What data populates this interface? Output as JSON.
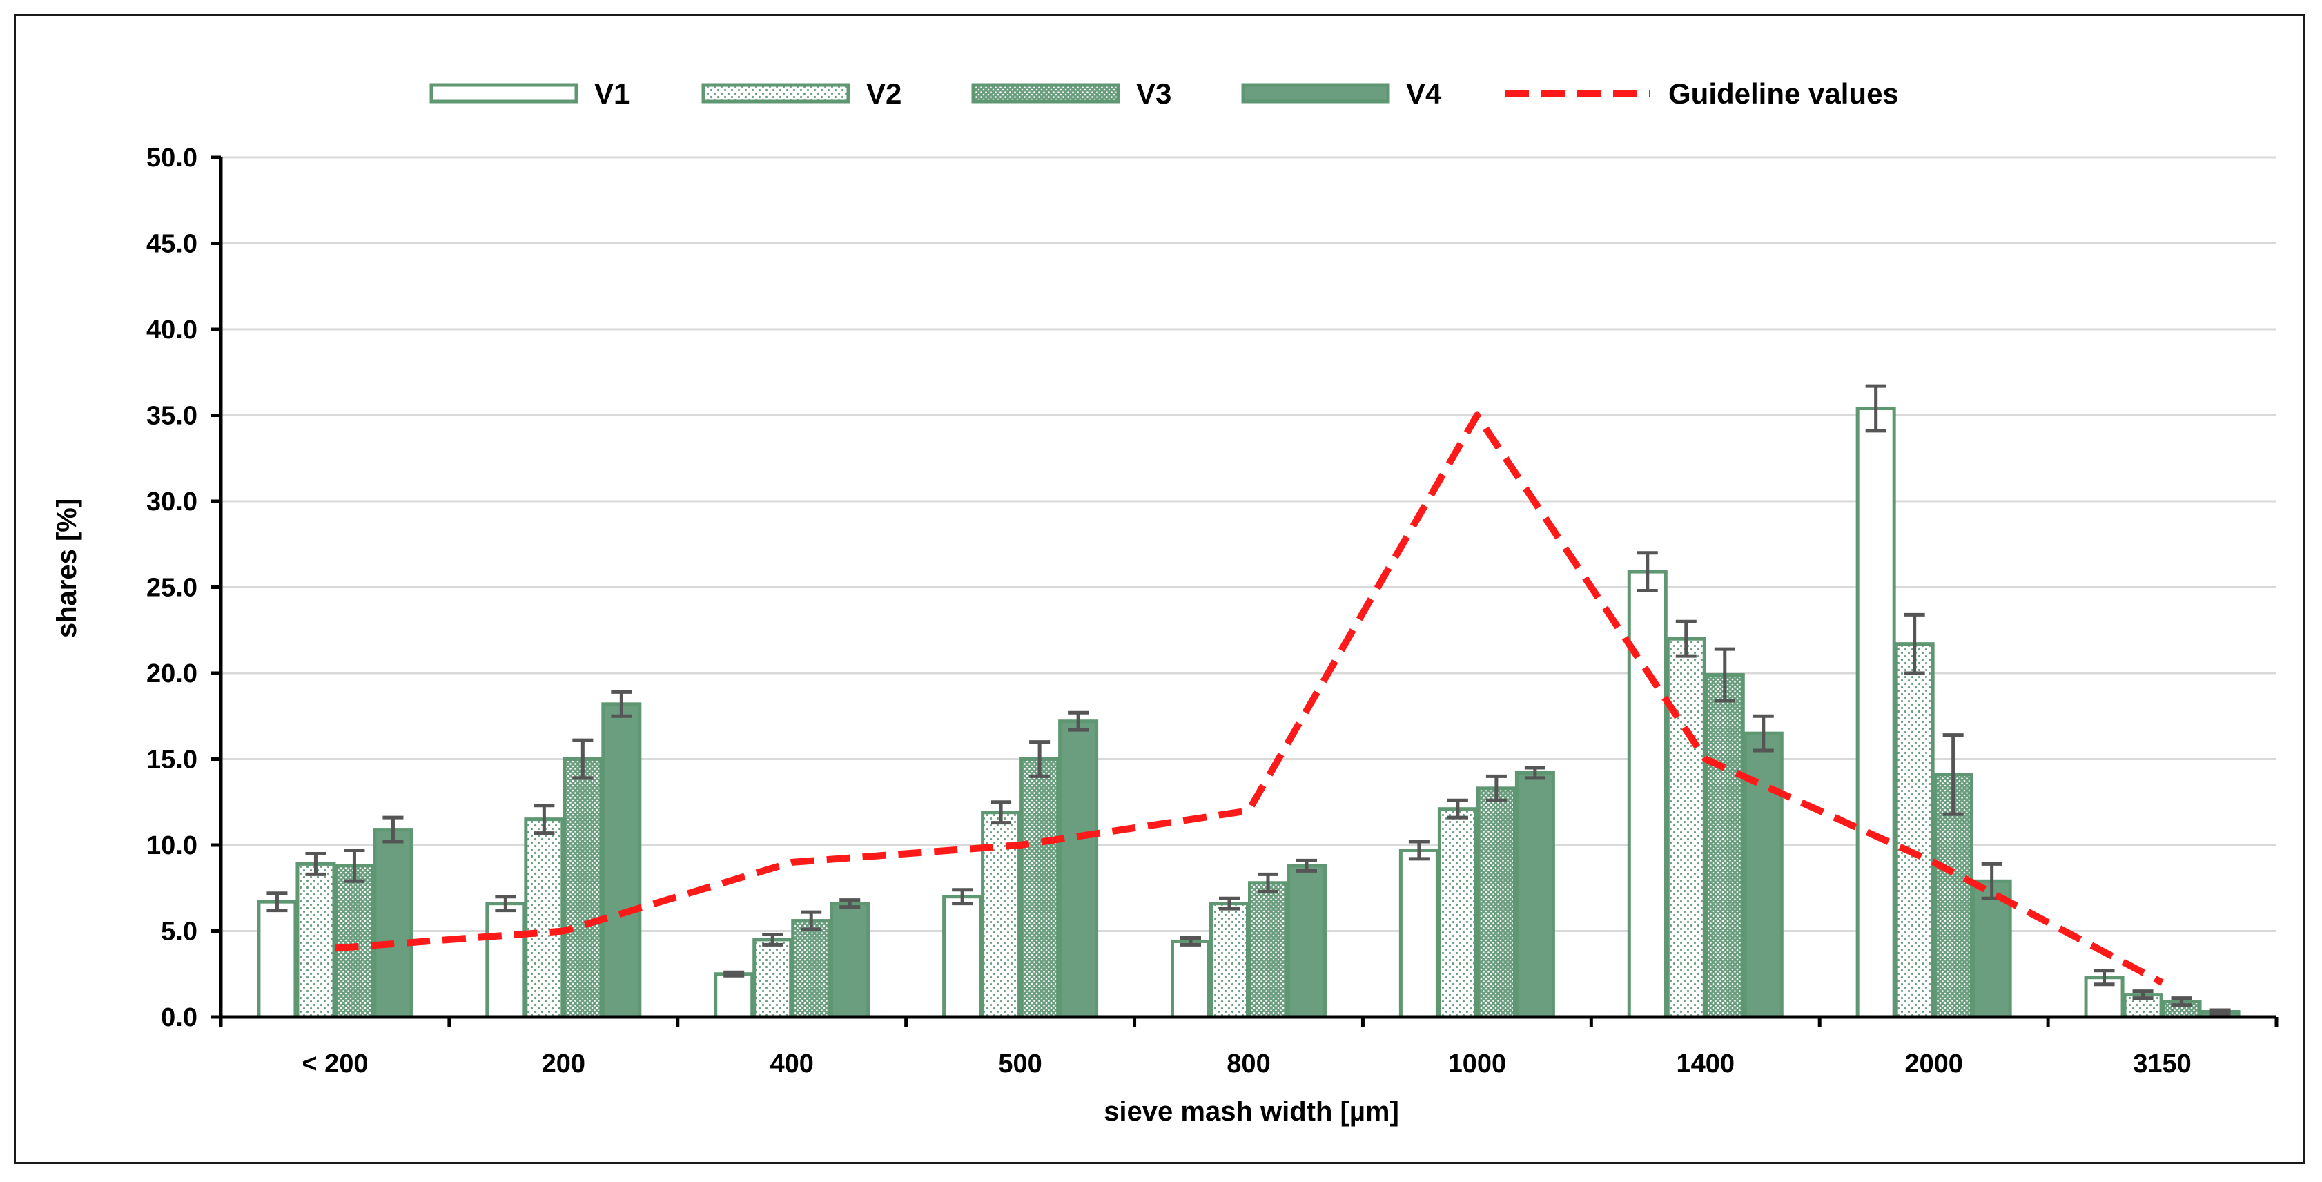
{
  "chart_data": {
    "type": "bar",
    "title": "",
    "xlabel": "sieve mash width [µm]",
    "ylabel": "shares [%]",
    "ylim": [
      0,
      50
    ],
    "ytick_step": 5,
    "ytick_labels": [
      "0.0",
      "5.0",
      "10.0",
      "15.0",
      "20.0",
      "25.0",
      "30.0",
      "35.0",
      "40.0",
      "45.0",
      "50.0"
    ],
    "grid": true,
    "legend_position": "top",
    "categories": [
      "< 200",
      "200",
      "400",
      "500",
      "800",
      "1000",
      "1400",
      "2000",
      "3150"
    ],
    "series": [
      {
        "name": "V1",
        "style": "outline",
        "values": [
          6.7,
          6.6,
          2.5,
          7.0,
          4.4,
          9.7,
          25.9,
          35.4,
          2.3
        ],
        "errors": [
          0.5,
          0.4,
          0.1,
          0.4,
          0.2,
          0.5,
          1.1,
          1.3,
          0.4
        ]
      },
      {
        "name": "V2",
        "style": "dots-light",
        "values": [
          8.9,
          11.5,
          4.5,
          11.9,
          6.6,
          12.1,
          22.0,
          21.7,
          1.3
        ],
        "errors": [
          0.6,
          0.8,
          0.3,
          0.6,
          0.3,
          0.5,
          1.0,
          1.7,
          0.2
        ]
      },
      {
        "name": "V3",
        "style": "dots-dense",
        "values": [
          8.8,
          15.0,
          5.6,
          15.0,
          7.8,
          13.3,
          19.9,
          14.1,
          0.9
        ],
        "errors": [
          0.9,
          1.1,
          0.5,
          1.0,
          0.5,
          0.7,
          1.5,
          2.3,
          0.2
        ]
      },
      {
        "name": "V4",
        "style": "solid",
        "values": [
          10.9,
          18.2,
          6.6,
          17.2,
          8.8,
          14.2,
          16.5,
          7.9,
          0.3
        ],
        "errors": [
          0.7,
          0.7,
          0.2,
          0.5,
          0.3,
          0.3,
          1.0,
          1.0,
          0.1
        ]
      }
    ],
    "guideline": {
      "name": "Guideline values",
      "points": [
        {
          "category": "< 200",
          "value": 4.0
        },
        {
          "category": "200",
          "value": 5.0
        },
        {
          "category": "400",
          "value": 9.0
        },
        {
          "category": "500",
          "value": 10.0
        },
        {
          "category": "800",
          "value": 12.0
        },
        {
          "category": "1000",
          "value": 35.0
        },
        {
          "category": "1400",
          "value": 15.0
        },
        {
          "category": "2000",
          "value": 9.0
        },
        {
          "category": "3150",
          "value": 2.0
        }
      ]
    },
    "colors": {
      "bar_green": "#6a9e7f",
      "bar_outline": "#5f9773",
      "guideline": "#ff1a1a",
      "error_bar": "#555555",
      "grid": "#d9d9d9",
      "axis": "#000000"
    }
  }
}
